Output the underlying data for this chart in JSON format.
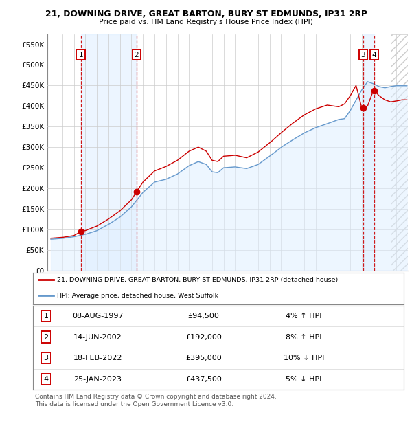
{
  "title_line1": "21, DOWNING DRIVE, GREAT BARTON, BURY ST EDMUNDS, IP31 2RP",
  "title_line2": "Price paid vs. HM Land Registry's House Price Index (HPI)",
  "ylim": [
    0,
    575000
  ],
  "yticks": [
    0,
    50000,
    100000,
    150000,
    200000,
    250000,
    300000,
    350000,
    400000,
    450000,
    500000,
    550000
  ],
  "ytick_labels": [
    "£0",
    "£50K",
    "£100K",
    "£150K",
    "£200K",
    "£250K",
    "£300K",
    "£350K",
    "£400K",
    "£450K",
    "£500K",
    "£550K"
  ],
  "xlim_start": 1994.7,
  "xlim_end": 2026.0,
  "sale_color": "#cc0000",
  "hpi_color": "#6699cc",
  "hpi_fill_color": "#ddeeff",
  "transactions": [
    {
      "num": 1,
      "date_str": "08-AUG-1997",
      "year": 1997.6,
      "price": 94500,
      "pct": "4%",
      "dir": "↑"
    },
    {
      "num": 2,
      "date_str": "14-JUN-2002",
      "year": 2002.45,
      "price": 192000,
      "pct": "8%",
      "dir": "↑"
    },
    {
      "num": 3,
      "date_str": "18-FEB-2022",
      "year": 2022.12,
      "price": 395000,
      "pct": "10%",
      "dir": "↓"
    },
    {
      "num": 4,
      "date_str": "25-JAN-2023",
      "year": 2023.07,
      "price": 437500,
      "pct": "5%",
      "dir": "↓"
    }
  ],
  "legend_entries": [
    {
      "label": "21, DOWNING DRIVE, GREAT BARTON, BURY ST EDMUNDS, IP31 2RP (detached house)",
      "color": "#cc0000"
    },
    {
      "label": "HPI: Average price, detached house, West Suffolk",
      "color": "#6699cc"
    }
  ],
  "table_rows": [
    {
      "num": 1,
      "date": "08-AUG-1997",
      "price": "£94,500",
      "pct": "4% ↑ HPI"
    },
    {
      "num": 2,
      "date": "14-JUN-2002",
      "price": "£192,000",
      "pct": "8% ↑ HPI"
    },
    {
      "num": 3,
      "date": "18-FEB-2022",
      "price": "£395,000",
      "pct": "10% ↓ HPI"
    },
    {
      "num": 4,
      "date": "25-JAN-2023",
      "price": "£437,500",
      "pct": "5% ↓ HPI"
    }
  ],
  "footnote": "Contains HM Land Registry data © Crown copyright and database right 2024.\nThis data is licensed under the Open Government Licence v3.0."
}
